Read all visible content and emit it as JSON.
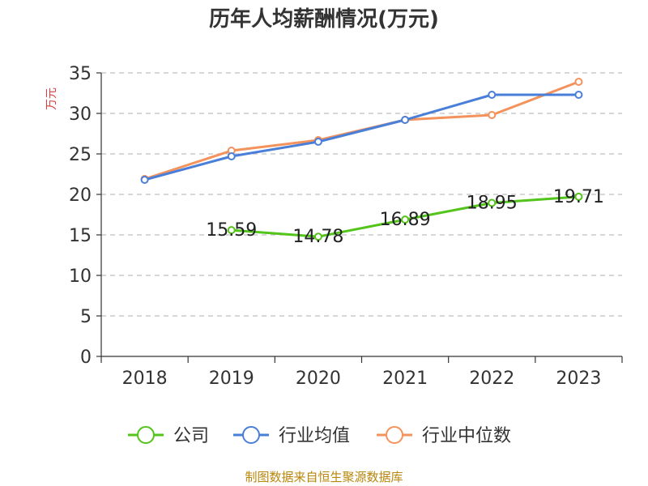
{
  "chart_data": {
    "type": "line",
    "title": "历年人均薪酬情况(万元)",
    "ylabel": "万元",
    "xlabel": "",
    "categories": [
      "2018",
      "2019",
      "2020",
      "2021",
      "2022",
      "2023"
    ],
    "ylim": [
      0,
      35
    ],
    "yticks": [
      0,
      5,
      10,
      15,
      20,
      25,
      30,
      35
    ],
    "grid": true,
    "legend_position": "bottom",
    "series": [
      {
        "name": "公司",
        "color": "#52c41a",
        "values": [
          null,
          15.59,
          14.78,
          16.89,
          18.95,
          19.71
        ],
        "show_labels": true
      },
      {
        "name": "行业均值",
        "color": "#4a7fd9",
        "values": [
          21.8,
          24.7,
          26.5,
          29.2,
          32.3,
          32.3
        ],
        "show_labels": false
      },
      {
        "name": "行业中位数",
        "color": "#f4925c",
        "values": [
          21.9,
          25.4,
          26.7,
          29.2,
          29.8,
          33.9
        ],
        "show_labels": false
      }
    ]
  },
  "source": "制图数据来自恒生聚源数据库"
}
